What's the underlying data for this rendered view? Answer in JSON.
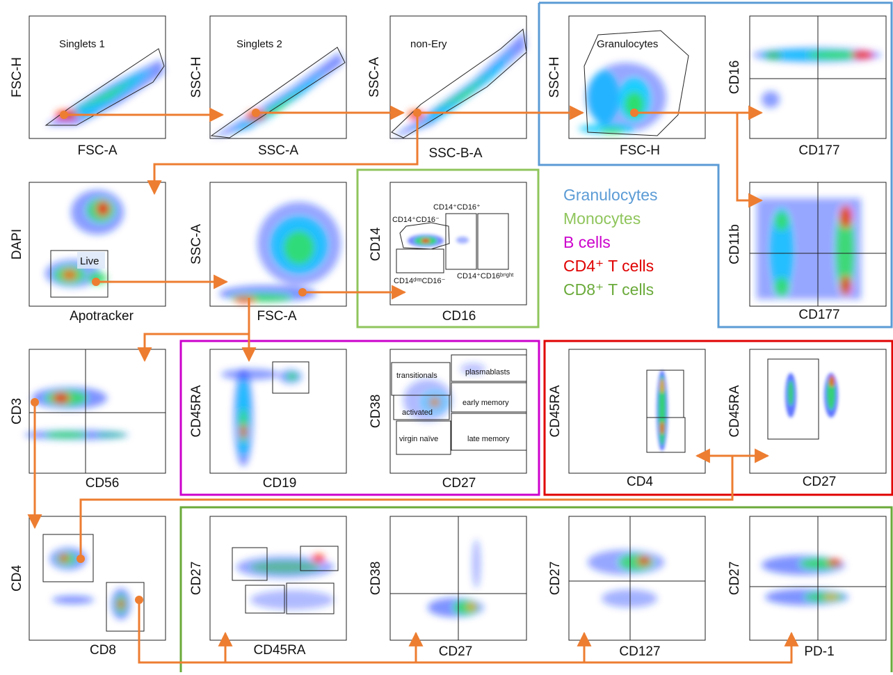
{
  "figure": {
    "legend": [
      {
        "text": "Granulocytes",
        "color": "#5b9bd5"
      },
      {
        "text": "Monocytes",
        "color": "#8fc55c"
      },
      {
        "text": "B cells",
        "color": "#cc00cc"
      },
      {
        "text": "CD4⁺ T cells",
        "color": "#e00000"
      },
      {
        "text": "CD8⁺ T cells",
        "color": "#6aaa3a"
      }
    ],
    "arrow_color": "#ed7d31",
    "panels": [
      {
        "id": "p11",
        "x_label": "FSC-A",
        "y_label": "FSC-H",
        "gate_labels": [
          "Singlets 1"
        ]
      },
      {
        "id": "p12",
        "x_label": "SSC-A",
        "y_label": "SSC-H",
        "gate_labels": [
          "Singlets 2"
        ]
      },
      {
        "id": "p13",
        "x_label": "SSC-B-A",
        "y_label": "SSC-A",
        "gate_labels": [
          "non-Ery"
        ]
      },
      {
        "id": "p14",
        "x_label": "FSC-H",
        "y_label": "SSC-H",
        "gate_labels": [
          "Granulocytes"
        ]
      },
      {
        "id": "p15",
        "x_label": "CD177",
        "y_label": "CD16",
        "gate_labels": []
      },
      {
        "id": "p21",
        "x_label": "Apotracker",
        "y_label": "DAPI",
        "gate_labels": [
          "Live"
        ]
      },
      {
        "id": "p22",
        "x_label": "FSC-A",
        "y_label": "SSC-A",
        "gate_labels": []
      },
      {
        "id": "p23",
        "x_label": "CD16",
        "y_label": "CD14",
        "gate_labels": [
          "CD14⁺CD16⁺",
          "CD14⁺CD16⁻",
          "CD14ᵈⁱᵐCD16⁻",
          "CD14⁺CD16ᵇʳⁱᵍʰᵗ"
        ]
      },
      {
        "id": "p25",
        "x_label": "CD177",
        "y_label": "CD11b",
        "gate_labels": []
      },
      {
        "id": "p31",
        "x_label": "CD56",
        "y_label": "CD3",
        "gate_labels": []
      },
      {
        "id": "p32",
        "x_label": "CD19",
        "y_label": "CD45RA",
        "gate_labels": []
      },
      {
        "id": "p33",
        "x_label": "CD27",
        "y_label": "CD38",
        "gate_labels": [
          "transitionals",
          "plasmablasts",
          "activated",
          "early memory",
          "virgin naïve",
          "late memory"
        ]
      },
      {
        "id": "p34",
        "x_label": "CD4",
        "y_label": "CD45RA",
        "gate_labels": []
      },
      {
        "id": "p35",
        "x_label": "CD27",
        "y_label": "CD45RA",
        "gate_labels": []
      },
      {
        "id": "p41",
        "x_label": "CD8",
        "y_label": "CD4",
        "gate_labels": []
      },
      {
        "id": "p42",
        "x_label": "CD45RA",
        "y_label": "CD27",
        "gate_labels": []
      },
      {
        "id": "p43",
        "x_label": "CD27",
        "y_label": "CD38",
        "gate_labels": []
      },
      {
        "id": "p44",
        "x_label": "CD127",
        "y_label": "CD27",
        "gate_labels": []
      },
      {
        "id": "p45",
        "x_label": "PD-1",
        "y_label": "CD27",
        "gate_labels": []
      }
    ]
  }
}
